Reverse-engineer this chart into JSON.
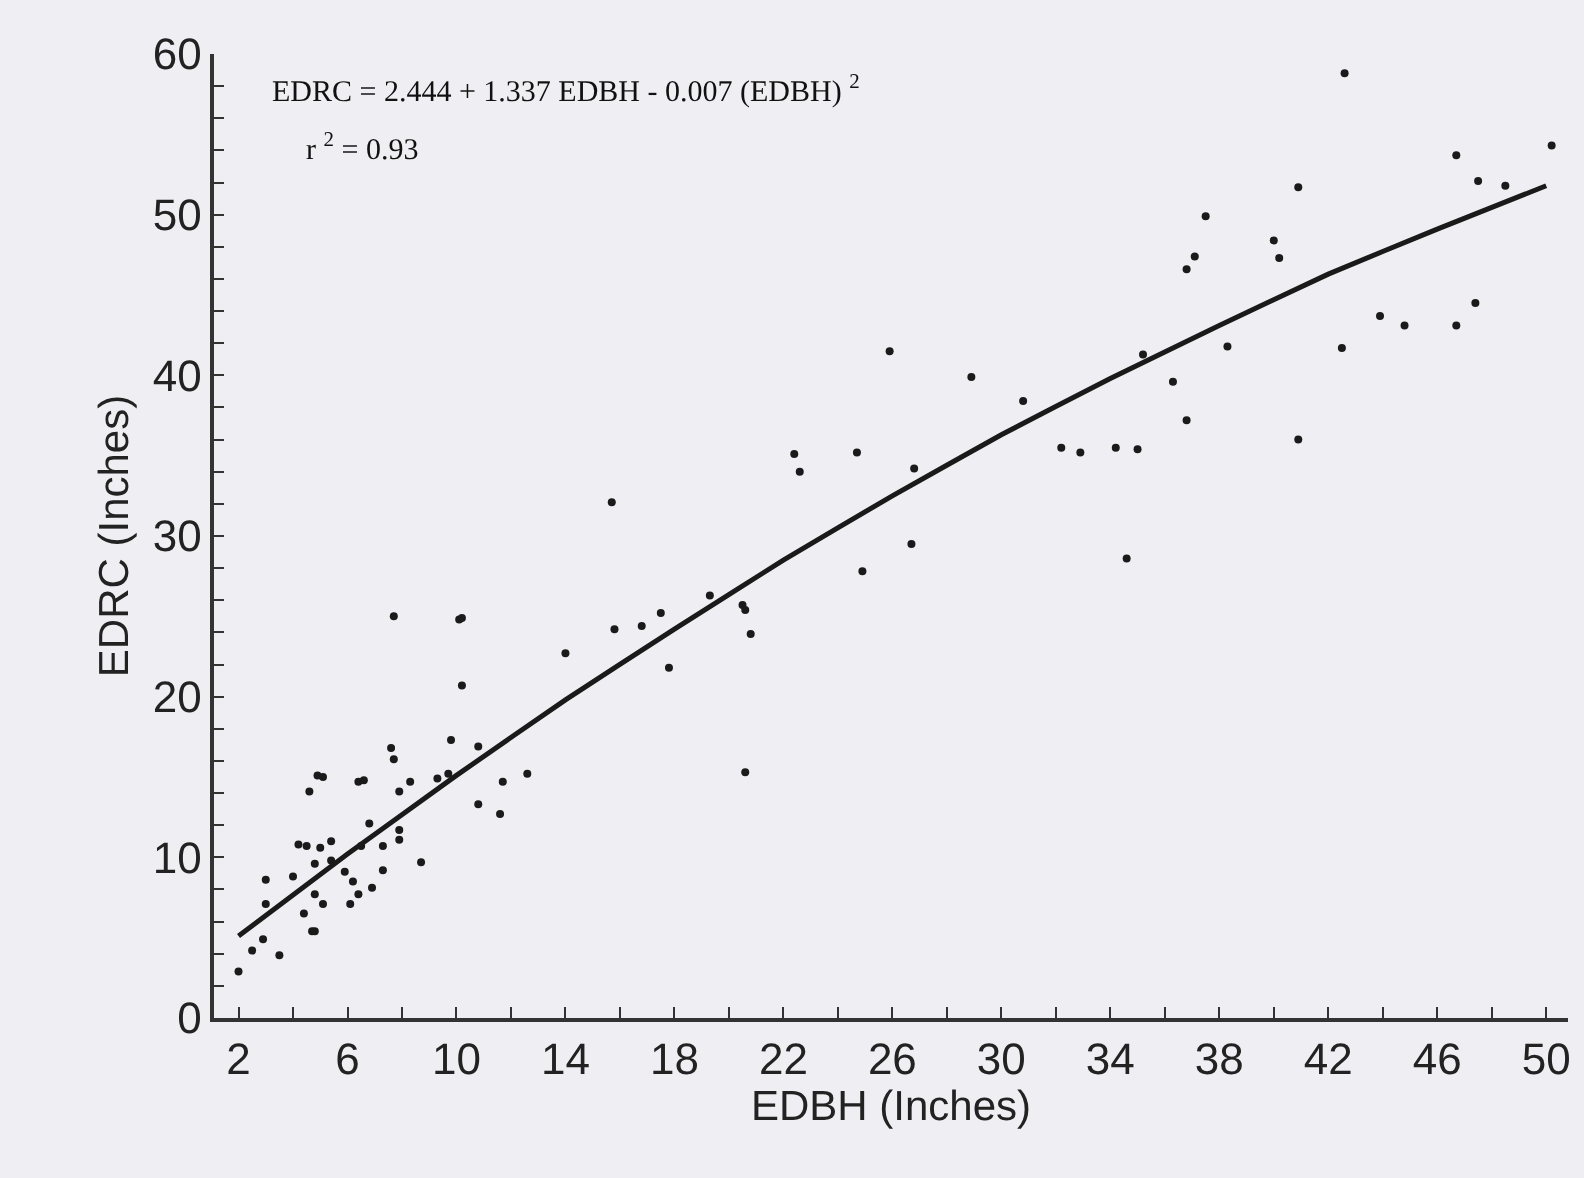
{
  "chart_data": {
    "type": "scatter",
    "xlabel": "EDBH (Inches)",
    "ylabel": "EDRC (Inches)",
    "annotations": [
      "EDRC = 2.444 + 1.337 EDBH - 0.007 (EDBH) $^{2}$",
      "r $^{2}$ = 0.93"
    ],
    "xlim": [
      1.1,
      50.8
    ],
    "ylim": [
      0,
      60
    ],
    "xticks": [
      2,
      {
        "value": 4,
        "label": null
      },
      6,
      {
        "value": 8,
        "label": null
      },
      10,
      {
        "value": 12,
        "label": null
      },
      14,
      {
        "value": 16,
        "label": null
      },
      18,
      {
        "value": 20,
        "label": null
      },
      22,
      {
        "value": 24,
        "label": null
      },
      26,
      {
        "value": 28,
        "label": null
      },
      30,
      {
        "value": 32,
        "label": null
      },
      34,
      {
        "value": 36,
        "label": null
      },
      38,
      {
        "value": 40,
        "label": null
      },
      42,
      {
        "value": 44,
        "label": null
      },
      46,
      {
        "value": 48,
        "label": null
      },
      50
    ],
    "yticks": [
      0,
      {
        "value": 2,
        "label": null
      },
      {
        "value": 4,
        "label": null
      },
      {
        "value": 6,
        "label": null
      },
      {
        "value": 8,
        "label": null
      },
      10,
      {
        "value": 12,
        "label": null
      },
      {
        "value": 14,
        "label": null
      },
      {
        "value": 16,
        "label": null
      },
      {
        "value": 18,
        "label": null
      },
      20,
      {
        "value": 22,
        "label": null
      },
      {
        "value": 24,
        "label": null
      },
      {
        "value": 26,
        "label": null
      },
      {
        "value": 28,
        "label": null
      },
      30,
      {
        "value": 32,
        "label": null
      },
      {
        "value": 34,
        "label": null
      },
      {
        "value": 36,
        "label": null
      },
      {
        "value": 38,
        "label": null
      },
      40,
      {
        "value": 42,
        "label": null
      },
      {
        "value": 44,
        "label": null
      },
      {
        "value": 46,
        "label": null
      },
      {
        "value": 48,
        "label": null
      },
      50,
      {
        "value": 52,
        "label": null
      },
      {
        "value": 54,
        "label": null
      },
      {
        "value": 56,
        "label": null
      },
      {
        "value": 58,
        "label": null
      },
      60
    ],
    "series": [
      {
        "marker": "circle",
        "color": "#1a1a1a",
        "x": [
          7.7,
          10.1,
          10.2,
          14.0,
          10.2,
          9.8,
          10.8,
          7.6,
          7.7,
          4.9,
          5.1,
          6.4,
          6.6,
          4.6,
          7.9,
          8.3,
          9.3,
          9.7,
          11.7,
          12.6,
          10.8,
          11.6,
          6.8,
          7.9,
          7.9,
          4.2,
          4.5,
          5.4,
          5.0,
          7.3,
          6.5,
          8.7,
          4.8,
          5.4,
          5.9,
          7.3,
          4.0,
          3.0,
          6.2,
          6.9,
          6.4,
          4.8,
          5.1,
          6.1,
          4.4,
          3.0,
          4.8,
          4.7,
          2.9,
          2.5,
          3.5,
          2.0,
          25.9,
          28.9,
          30.8,
          32.2,
          15.7,
          22.4,
          22.6,
          24.7,
          26.8,
          26.7,
          24.9,
          19.3,
          20.5,
          20.6,
          20.8,
          17.5,
          16.8,
          15.8,
          17.8,
          20.6,
          46.7,
          50.2,
          47.5,
          48.5,
          40.9,
          37.5,
          37.1,
          36.8,
          40.0,
          40.2,
          35.2,
          36.3,
          36.8,
          38.3,
          42.5,
          43.9,
          44.8,
          46.7,
          47.4,
          40.9,
          32.9,
          34.2,
          35.0,
          34.6,
          42.6
        ],
        "values": [
          25.0,
          24.8,
          24.9,
          22.7,
          20.7,
          17.3,
          16.9,
          16.8,
          16.1,
          15.1,
          15.0,
          14.7,
          14.8,
          14.1,
          14.1,
          14.7,
          14.9,
          15.2,
          14.7,
          15.2,
          13.3,
          12.7,
          12.1,
          11.7,
          11.1,
          10.8,
          10.7,
          11.0,
          10.6,
          10.7,
          10.7,
          9.7,
          9.6,
          9.8,
          9.1,
          9.2,
          8.8,
          8.6,
          8.5,
          8.1,
          7.7,
          7.7,
          7.1,
          7.1,
          6.5,
          7.1,
          5.4,
          5.4,
          4.9,
          4.2,
          3.9,
          2.9,
          41.5,
          39.9,
          38.4,
          35.5,
          32.1,
          35.1,
          34.0,
          35.2,
          34.2,
          29.5,
          27.8,
          26.3,
          25.7,
          25.4,
          23.9,
          25.2,
          24.4,
          24.2,
          21.8,
          15.3,
          53.7,
          54.3,
          52.1,
          51.8,
          51.7,
          49.9,
          47.4,
          46.6,
          48.4,
          47.3,
          41.3,
          39.6,
          37.2,
          41.8,
          41.7,
          43.7,
          43.1,
          43.1,
          44.5,
          36.0,
          35.2,
          35.5,
          35.4,
          28.6,
          58.8
        ]
      },
      {
        "type": "line",
        "marker": "none",
        "line_style": "solid",
        "color": "#1a1a1a",
        "x": [
          2,
          6,
          10,
          14,
          18,
          22,
          26,
          30,
          34,
          38,
          42,
          46,
          50
        ],
        "values": [
          5.1,
          10.2,
          15.1,
          19.8,
          24.2,
          28.5,
          32.5,
          36.3,
          39.8,
          43.1,
          46.3,
          49.1,
          51.8
        ]
      }
    ]
  }
}
